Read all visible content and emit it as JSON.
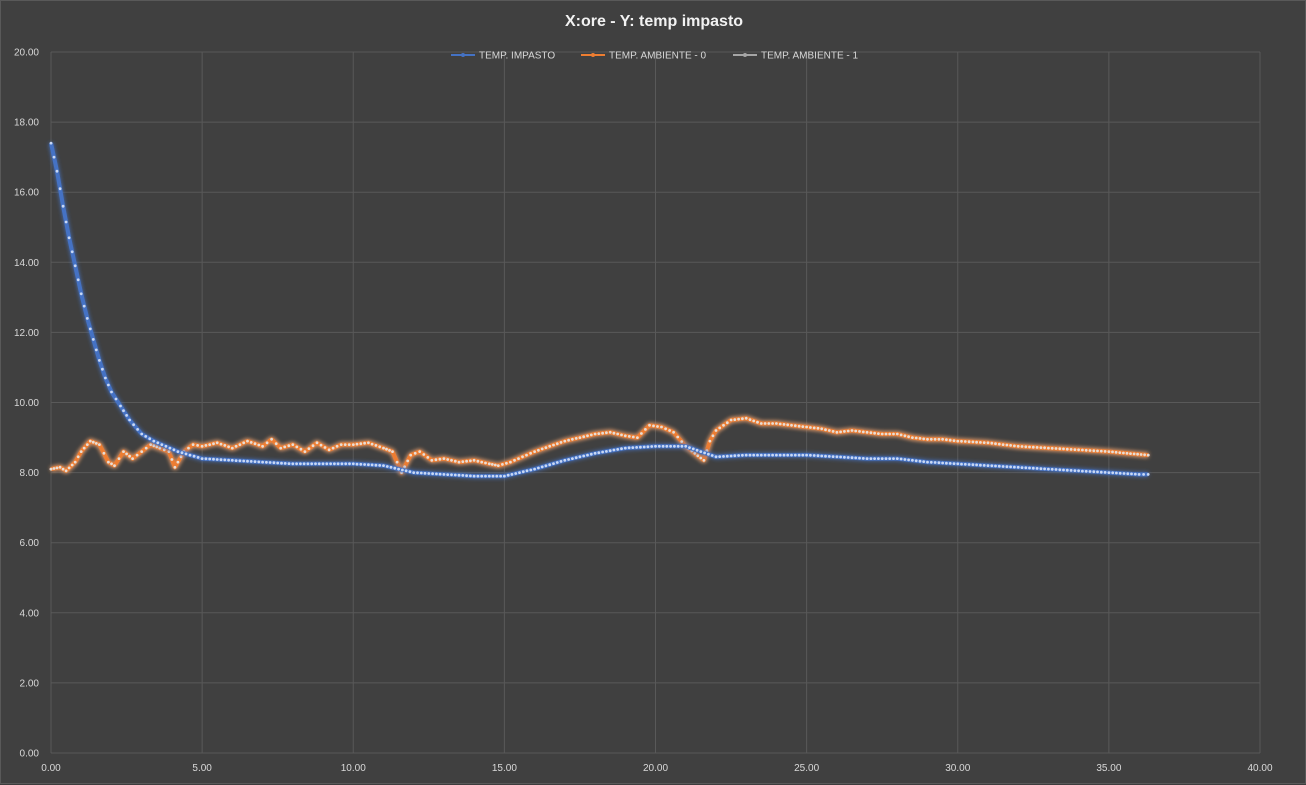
{
  "chart_data": {
    "type": "line",
    "title": "X:ore - Y: temp impasto",
    "xlabel": "",
    "ylabel": "",
    "xlim": [
      0,
      40
    ],
    "ylim": [
      0,
      20
    ],
    "x_ticks": [
      "0.00",
      "5.00",
      "10.00",
      "15.00",
      "20.00",
      "25.00",
      "30.00",
      "35.00",
      "40.00"
    ],
    "y_ticks": [
      "0.00",
      "2.00",
      "4.00",
      "6.00",
      "8.00",
      "10.00",
      "12.00",
      "14.00",
      "16.00",
      "18.00",
      "20.00"
    ],
    "grid": true,
    "legend_position": "top",
    "series": [
      {
        "name": "TEMP. IMPASTO",
        "color": "#4472c4",
        "points": [
          [
            0.0,
            17.4
          ],
          [
            0.2,
            16.6
          ],
          [
            0.4,
            15.6
          ],
          [
            0.6,
            14.7
          ],
          [
            0.8,
            13.9
          ],
          [
            1.0,
            13.1
          ],
          [
            1.2,
            12.4
          ],
          [
            1.4,
            11.8
          ],
          [
            1.6,
            11.2
          ],
          [
            1.8,
            10.7
          ],
          [
            2.0,
            10.3
          ],
          [
            2.3,
            9.9
          ],
          [
            2.6,
            9.5
          ],
          [
            3.0,
            9.1
          ],
          [
            3.4,
            8.9
          ],
          [
            3.8,
            8.75
          ],
          [
            4.2,
            8.6
          ],
          [
            4.6,
            8.5
          ],
          [
            5.0,
            8.4
          ],
          [
            6.0,
            8.35
          ],
          [
            7.0,
            8.3
          ],
          [
            8.0,
            8.25
          ],
          [
            9.0,
            8.25
          ],
          [
            10.0,
            8.25
          ],
          [
            11.0,
            8.2
          ],
          [
            11.5,
            8.1
          ],
          [
            12.0,
            8.0
          ],
          [
            13.0,
            7.95
          ],
          [
            14.0,
            7.9
          ],
          [
            15.0,
            7.9
          ],
          [
            15.5,
            8.0
          ],
          [
            16.0,
            8.1
          ],
          [
            17.0,
            8.35
          ],
          [
            18.0,
            8.55
          ],
          [
            19.0,
            8.7
          ],
          [
            20.0,
            8.75
          ],
          [
            21.0,
            8.75
          ],
          [
            21.5,
            8.6
          ],
          [
            22.0,
            8.45
          ],
          [
            23.0,
            8.5
          ],
          [
            24.0,
            8.5
          ],
          [
            25.0,
            8.5
          ],
          [
            26.0,
            8.45
          ],
          [
            27.0,
            8.4
          ],
          [
            28.0,
            8.4
          ],
          [
            29.0,
            8.3
          ],
          [
            30.0,
            8.25
          ],
          [
            31.0,
            8.2
          ],
          [
            32.0,
            8.15
          ],
          [
            33.0,
            8.1
          ],
          [
            34.0,
            8.05
          ],
          [
            35.0,
            8.0
          ],
          [
            36.0,
            7.95
          ],
          [
            36.3,
            7.95
          ]
        ]
      },
      {
        "name": "TEMP. AMBIENTE - 0",
        "color": "#ed7d31",
        "points": [
          [
            0.0,
            8.1
          ],
          [
            0.3,
            8.15
          ],
          [
            0.5,
            8.05
          ],
          [
            0.8,
            8.3
          ],
          [
            1.0,
            8.6
          ],
          [
            1.3,
            8.9
          ],
          [
            1.6,
            8.8
          ],
          [
            1.9,
            8.3
          ],
          [
            2.1,
            8.2
          ],
          [
            2.4,
            8.6
          ],
          [
            2.7,
            8.4
          ],
          [
            3.0,
            8.6
          ],
          [
            3.3,
            8.8
          ],
          [
            3.6,
            8.7
          ],
          [
            3.9,
            8.6
          ],
          [
            4.1,
            8.15
          ],
          [
            4.4,
            8.6
          ],
          [
            4.7,
            8.8
          ],
          [
            5.0,
            8.75
          ],
          [
            5.5,
            8.85
          ],
          [
            6.0,
            8.7
          ],
          [
            6.5,
            8.9
          ],
          [
            7.0,
            8.75
          ],
          [
            7.3,
            8.95
          ],
          [
            7.6,
            8.7
          ],
          [
            8.0,
            8.8
          ],
          [
            8.4,
            8.6
          ],
          [
            8.8,
            8.85
          ],
          [
            9.2,
            8.65
          ],
          [
            9.6,
            8.8
          ],
          [
            10.0,
            8.8
          ],
          [
            10.5,
            8.85
          ],
          [
            11.0,
            8.7
          ],
          [
            11.3,
            8.6
          ],
          [
            11.6,
            8.0
          ],
          [
            11.9,
            8.5
          ],
          [
            12.2,
            8.6
          ],
          [
            12.6,
            8.35
          ],
          [
            13.0,
            8.4
          ],
          [
            13.5,
            8.3
          ],
          [
            14.0,
            8.35
          ],
          [
            14.5,
            8.25
          ],
          [
            14.8,
            8.2
          ],
          [
            15.2,
            8.3
          ],
          [
            15.6,
            8.45
          ],
          [
            16.0,
            8.6
          ],
          [
            16.5,
            8.75
          ],
          [
            17.0,
            8.9
          ],
          [
            17.5,
            9.0
          ],
          [
            18.0,
            9.1
          ],
          [
            18.5,
            9.15
          ],
          [
            19.0,
            9.05
          ],
          [
            19.4,
            9.0
          ],
          [
            19.8,
            9.35
          ],
          [
            20.2,
            9.3
          ],
          [
            20.6,
            9.15
          ],
          [
            21.0,
            8.75
          ],
          [
            21.3,
            8.55
          ],
          [
            21.6,
            8.35
          ],
          [
            21.8,
            8.9
          ],
          [
            22.0,
            9.2
          ],
          [
            22.5,
            9.5
          ],
          [
            23.0,
            9.55
          ],
          [
            23.5,
            9.4
          ],
          [
            24.0,
            9.4
          ],
          [
            24.5,
            9.35
          ],
          [
            25.0,
            9.3
          ],
          [
            25.5,
            9.25
          ],
          [
            26.0,
            9.15
          ],
          [
            26.5,
            9.2
          ],
          [
            27.0,
            9.15
          ],
          [
            27.5,
            9.1
          ],
          [
            28.0,
            9.1
          ],
          [
            28.5,
            9.0
          ],
          [
            29.0,
            8.95
          ],
          [
            29.5,
            8.95
          ],
          [
            30.0,
            8.9
          ],
          [
            31.0,
            8.85
          ],
          [
            32.0,
            8.75
          ],
          [
            33.0,
            8.7
          ],
          [
            34.0,
            8.65
          ],
          [
            35.0,
            8.6
          ],
          [
            35.6,
            8.55
          ],
          [
            36.3,
            8.5
          ]
        ]
      },
      {
        "name": "TEMP. AMBIENTE - 1",
        "color": "#a5a5a5",
        "points": [
          [
            0.0,
            8.1
          ],
          [
            0.3,
            8.15
          ],
          [
            0.5,
            8.05
          ],
          [
            0.8,
            8.3
          ],
          [
            1.0,
            8.6
          ],
          [
            1.3,
            8.9
          ],
          [
            1.6,
            8.8
          ],
          [
            1.9,
            8.3
          ],
          [
            2.1,
            8.2
          ],
          [
            2.4,
            8.6
          ],
          [
            2.7,
            8.4
          ],
          [
            3.0,
            8.6
          ],
          [
            3.3,
            8.8
          ],
          [
            3.6,
            8.7
          ],
          [
            3.9,
            8.6
          ],
          [
            4.1,
            8.15
          ],
          [
            4.4,
            8.6
          ],
          [
            4.7,
            8.8
          ],
          [
            5.0,
            8.75
          ],
          [
            5.5,
            8.85
          ],
          [
            6.0,
            8.7
          ],
          [
            6.5,
            8.9
          ],
          [
            7.0,
            8.75
          ],
          [
            7.3,
            8.95
          ],
          [
            7.6,
            8.7
          ],
          [
            8.0,
            8.8
          ],
          [
            8.4,
            8.6
          ],
          [
            8.8,
            8.85
          ],
          [
            9.2,
            8.65
          ],
          [
            9.6,
            8.8
          ],
          [
            10.0,
            8.8
          ],
          [
            10.5,
            8.85
          ],
          [
            11.0,
            8.7
          ],
          [
            11.3,
            8.6
          ],
          [
            11.6,
            8.0
          ],
          [
            11.9,
            8.5
          ],
          [
            12.2,
            8.6
          ],
          [
            12.6,
            8.35
          ],
          [
            13.0,
            8.4
          ],
          [
            13.5,
            8.3
          ],
          [
            14.0,
            8.35
          ],
          [
            14.5,
            8.25
          ],
          [
            14.8,
            8.2
          ],
          [
            15.2,
            8.3
          ],
          [
            15.6,
            8.45
          ],
          [
            16.0,
            8.6
          ],
          [
            16.5,
            8.75
          ],
          [
            17.0,
            8.9
          ],
          [
            17.5,
            9.0
          ],
          [
            18.0,
            9.1
          ],
          [
            18.5,
            9.15
          ],
          [
            19.0,
            9.05
          ],
          [
            19.4,
            9.0
          ],
          [
            19.8,
            9.35
          ],
          [
            20.2,
            9.3
          ],
          [
            20.6,
            9.15
          ],
          [
            21.0,
            8.75
          ],
          [
            21.3,
            8.55
          ],
          [
            21.6,
            8.35
          ],
          [
            21.8,
            8.9
          ],
          [
            22.0,
            9.2
          ],
          [
            22.5,
            9.5
          ],
          [
            23.0,
            9.55
          ],
          [
            23.5,
            9.4
          ],
          [
            24.0,
            9.4
          ],
          [
            24.5,
            9.35
          ],
          [
            25.0,
            9.3
          ],
          [
            25.5,
            9.25
          ],
          [
            26.0,
            9.15
          ],
          [
            26.5,
            9.2
          ],
          [
            27.0,
            9.15
          ],
          [
            27.5,
            9.1
          ],
          [
            28.0,
            9.1
          ],
          [
            28.5,
            9.0
          ],
          [
            29.0,
            8.95
          ],
          [
            29.5,
            8.95
          ],
          [
            30.0,
            8.9
          ],
          [
            31.0,
            8.85
          ],
          [
            32.0,
            8.75
          ],
          [
            33.0,
            8.7
          ],
          [
            34.0,
            8.65
          ],
          [
            35.0,
            8.6
          ],
          [
            35.6,
            8.55
          ],
          [
            36.3,
            8.5
          ]
        ]
      }
    ]
  },
  "colors": {
    "background": "#404040",
    "gridline": "#595959",
    "text": "#d9d9d9",
    "title": "#f2f2f2"
  }
}
